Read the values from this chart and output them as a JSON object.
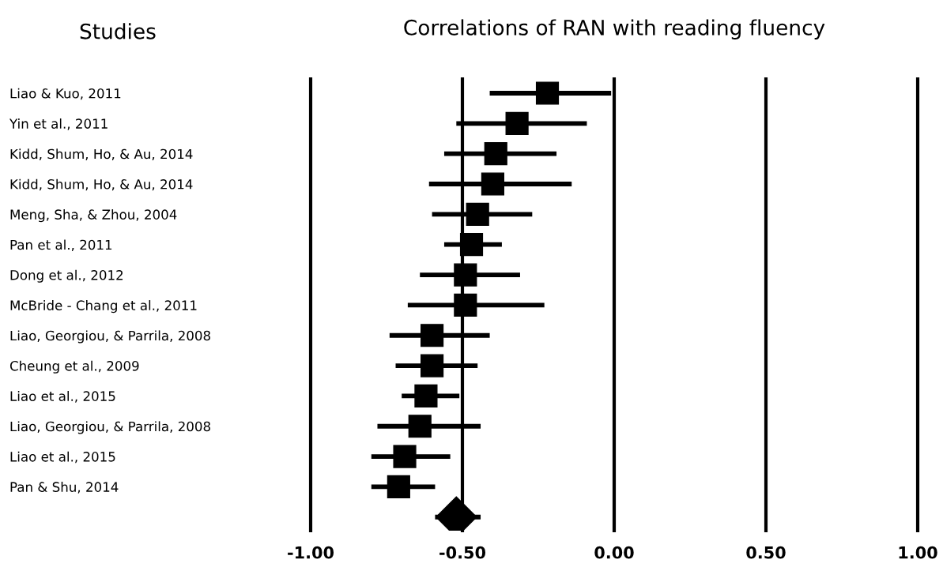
{
  "chart_data": {
    "type": "scatter",
    "orientation": "horizontal",
    "title": "Correlations of RAN with reading fluency",
    "ylabel": "Studies",
    "categories": [
      "Liao & Kuo, 2011",
      "Yin et al., 2011",
      "Kidd, Shum, Ho, & Au, 2014",
      "Kidd, Shum, Ho, & Au, 2014",
      "Meng, Sha, & Zhou, 2004",
      "Pan et al., 2011",
      "Dong et al., 2012",
      "McBride - Chang et al., 2011",
      "Liao, Georgiou, & Parrila, 2008",
      "Cheung et al., 2009",
      "Liao et al., 2015",
      "Liao, Georgiou, & Parrila, 2008",
      "Liao et al., 2015",
      "Pan & Shu, 2014",
      null
    ],
    "series": [
      {
        "color": "#000000",
        "marker": "square",
        "values": [
          -0.22,
          -0.32,
          -0.39,
          -0.4,
          -0.45,
          -0.47,
          -0.49,
          -0.49,
          -0.6,
          -0.6,
          -0.62,
          -0.64,
          -0.69,
          -0.71,
          null
        ],
        "errors": [
          [
            -0.41,
            -0.01
          ],
          [
            -0.52,
            -0.09
          ],
          [
            -0.56,
            -0.19
          ],
          [
            -0.61,
            -0.14
          ],
          [
            -0.6,
            -0.27
          ],
          [
            -0.56,
            -0.37
          ],
          [
            -0.64,
            -0.31
          ],
          [
            -0.68,
            -0.23
          ],
          [
            -0.74,
            -0.41
          ],
          [
            -0.72,
            -0.45
          ],
          [
            -0.7,
            -0.51
          ],
          [
            -0.78,
            -0.44
          ],
          [
            -0.8,
            -0.54
          ],
          [
            -0.8,
            -0.59
          ],
          null
        ]
      },
      {
        "color": "#000000",
        "marker": "diamond",
        "values": [
          null,
          null,
          null,
          null,
          null,
          null,
          null,
          null,
          null,
          null,
          null,
          null,
          null,
          null,
          -0.52
        ],
        "errors": [
          null,
          null,
          null,
          null,
          null,
          null,
          null,
          null,
          null,
          null,
          null,
          null,
          null,
          null,
          [
            -0.59,
            -0.44
          ]
        ]
      }
    ],
    "xlim": [
      -1.0,
      1.0
    ],
    "xticks": [
      {
        "value": -1.0,
        "label": "-1.00"
      },
      {
        "value": -0.5,
        "label": "-0.50"
      },
      {
        "value": 0.0,
        "label": "0.00"
      },
      {
        "value": 0.5,
        "label": "0.50"
      },
      {
        "value": 1.0,
        "label": "1.00"
      }
    ],
    "grid": "x"
  }
}
